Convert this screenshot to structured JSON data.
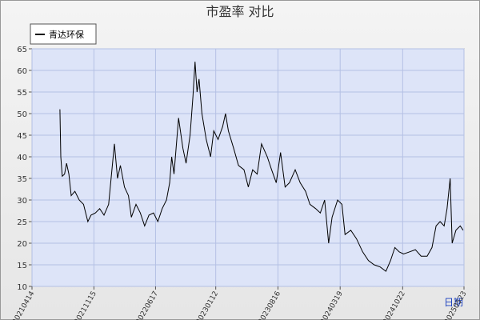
{
  "chart_data": {
    "type": "line",
    "title": "市盈率  对比",
    "x_label": "日期",
    "xlim": [
      "2021-04-14",
      "2025-05-23"
    ],
    "xticks": [
      {
        "value": "2021-04-14",
        "label": "20210414"
      },
      {
        "value": "2021-11-15",
        "label": "20211115"
      },
      {
        "value": "2022-06-17",
        "label": "20220617"
      },
      {
        "value": "2023-01-12",
        "label": "20230112"
      },
      {
        "value": "2023-08-16",
        "label": "20230816"
      },
      {
        "value": "2024-03-19",
        "label": "20240319"
      },
      {
        "value": "2024-10-22",
        "label": "20241022"
      },
      {
        "value": "2025-05-23",
        "label": "20250523"
      }
    ],
    "ylim": [
      10,
      65
    ],
    "yticks": [
      10,
      15,
      20,
      25,
      30,
      35,
      40,
      45,
      50,
      55,
      60,
      65
    ],
    "grid": true,
    "legend": "top-left",
    "x": [
      "2021-07-20",
      "2021-07-23",
      "2021-07-28",
      "2021-08-05",
      "2021-08-12",
      "2021-08-20",
      "2021-08-28",
      "2021-09-10",
      "2021-09-25",
      "2021-10-10",
      "2021-10-25",
      "2021-11-05",
      "2021-11-20",
      "2021-12-05",
      "2021-12-20",
      "2022-01-05",
      "2022-01-15",
      "2022-01-25",
      "2022-02-05",
      "2022-02-15",
      "2022-03-01",
      "2022-03-15",
      "2022-03-25",
      "2022-04-10",
      "2022-04-25",
      "2022-05-10",
      "2022-05-25",
      "2022-06-10",
      "2022-06-25",
      "2022-07-10",
      "2022-07-25",
      "2022-08-05",
      "2022-08-12",
      "2022-08-20",
      "2022-09-05",
      "2022-09-20",
      "2022-10-01",
      "2022-10-15",
      "2022-10-25",
      "2022-11-01",
      "2022-11-08",
      "2022-11-15",
      "2022-11-25",
      "2022-12-10",
      "2022-12-25",
      "2023-01-05",
      "2023-01-20",
      "2023-02-05",
      "2023-02-15",
      "2023-02-25",
      "2023-03-15",
      "2023-04-01",
      "2023-04-20",
      "2023-05-05",
      "2023-05-20",
      "2023-06-05",
      "2023-06-20",
      "2023-07-10",
      "2023-07-25",
      "2023-08-10",
      "2023-08-25",
      "2023-09-10",
      "2023-09-25",
      "2023-10-15",
      "2023-11-01",
      "2023-11-20",
      "2023-12-05",
      "2023-12-25",
      "2024-01-10",
      "2024-01-25",
      "2024-02-08",
      "2024-02-20",
      "2024-03-10",
      "2024-03-25",
      "2024-04-05",
      "2024-04-25",
      "2024-05-15",
      "2024-06-05",
      "2024-06-25",
      "2024-07-15",
      "2024-08-05",
      "2024-08-25",
      "2024-09-10",
      "2024-09-25",
      "2024-10-10",
      "2024-10-25",
      "2024-11-15",
      "2024-12-05",
      "2024-12-25",
      "2025-01-15",
      "2025-02-01",
      "2025-02-15",
      "2025-03-01",
      "2025-03-15",
      "2025-03-25",
      "2025-04-05",
      "2025-04-12",
      "2025-04-25",
      "2025-05-10",
      "2025-05-20"
    ],
    "series": [
      {
        "name": "青达环保",
        "color": "#000000",
        "values": [
          51,
          40,
          35.5,
          36,
          38.5,
          36,
          31,
          32,
          30,
          29,
          25,
          26.5,
          27,
          28,
          26.5,
          29,
          36,
          43,
          35,
          38,
          33,
          31,
          26,
          29,
          27,
          24,
          26.5,
          27,
          25,
          28,
          30,
          34,
          40,
          36,
          49,
          42,
          38.5,
          45,
          54,
          62,
          55,
          58,
          50,
          44,
          40,
          46,
          44,
          47,
          50,
          46,
          42,
          38,
          37,
          33,
          37,
          36,
          43,
          40,
          37,
          34,
          41,
          33,
          34,
          37,
          34,
          32,
          29,
          28,
          27,
          30,
          20,
          26,
          30,
          29,
          22,
          23,
          21,
          18,
          16,
          15,
          14.5,
          13.5,
          16,
          19,
          18,
          17.5,
          18,
          18.5,
          17,
          17,
          19,
          24,
          25,
          24,
          28,
          35,
          20,
          23,
          24,
          23
        ]
      }
    ]
  }
}
